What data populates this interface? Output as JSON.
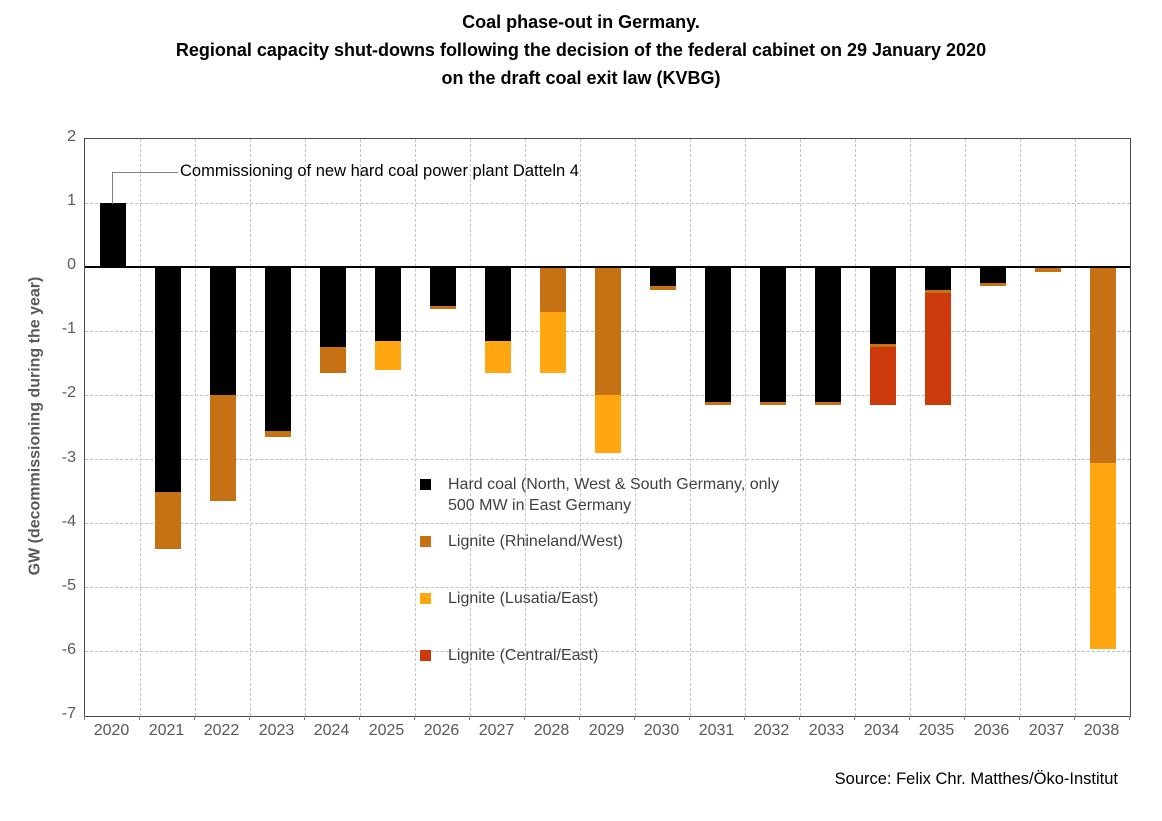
{
  "title": {
    "line1": "Coal phase-out in Germany.",
    "line2": "Regional capacity shut-downs following the decision of the federal cabinet on 29 January 2020",
    "line3": "on the draft coal exit law (KVBG)"
  },
  "source": "Source: Felix Chr. Matthes/Öko-Institut",
  "colors": {
    "hard_coal": "#000000",
    "lignite_rhineland": "#C57114",
    "lignite_lusatia": "#FFA611",
    "lignite_central": "#CC390B",
    "gridline": "#bfbfbf",
    "axis_text": "#595959",
    "zero_line": "#000000"
  },
  "chart_data": {
    "type": "bar",
    "stacked": true,
    "grid": true,
    "legend_position": "inside lower middle",
    "title": "Coal phase-out in Germany. Regional capacity shut-downs following the decision of the federal cabinet on 29 January 2020 on the draft coal exit law (KVBG)",
    "xlabel": "",
    "ylabel": "GW (decommissioning during the year)",
    "ylim": [
      -7,
      2
    ],
    "yticks": [
      2,
      1,
      0,
      -1,
      -2,
      -3,
      -4,
      -5,
      -6,
      -7
    ],
    "categories": [
      "2020",
      "2021",
      "2022",
      "2023",
      "2024",
      "2025",
      "2026",
      "2027",
      "2028",
      "2029",
      "2030",
      "2031",
      "2032",
      "2033",
      "2034",
      "2035",
      "2036",
      "2037",
      "2038"
    ],
    "series": [
      {
        "name": "Hard coal (North, West & South Germany, only 500 MW in East Germany",
        "color": "#000000",
        "values": [
          1.0,
          -3.5,
          -2.0,
          -2.55,
          -1.25,
          -1.15,
          -0.6,
          -1.15,
          0,
          0,
          -0.3,
          -2.1,
          -2.1,
          -2.1,
          -1.2,
          -0.35,
          -0.25,
          0,
          0
        ]
      },
      {
        "name": "Lignite (Rhineland/West)",
        "color": "#C57114",
        "values": [
          0,
          -0.9,
          -1.65,
          -0.1,
          -0.4,
          0,
          -0.05,
          0,
          -0.7,
          -2.0,
          -0.05,
          -0.05,
          -0.05,
          -0.05,
          -0.05,
          -0.05,
          -0.05,
          -0.07,
          -3.05
        ]
      },
      {
        "name": "Lignite (Lusatia/East)",
        "color": "#FFA611",
        "values": [
          0,
          0,
          0,
          0,
          0,
          -0.45,
          0,
          -0.5,
          -0.95,
          -0.9,
          0,
          0,
          0,
          0,
          0,
          0,
          0,
          0,
          -2.9
        ]
      },
      {
        "name": "Lignite (Central/East)",
        "color": "#CC390B",
        "values": [
          0,
          0,
          0,
          0,
          0,
          0,
          0,
          0,
          0,
          0,
          0,
          0,
          0,
          0,
          -0.9,
          -1.75,
          0,
          0,
          0
        ]
      }
    ],
    "annotation": {
      "text": "Commissioning of new hard coal power plant Datteln 4",
      "target_category": "2020",
      "target_value": 1.0
    }
  }
}
